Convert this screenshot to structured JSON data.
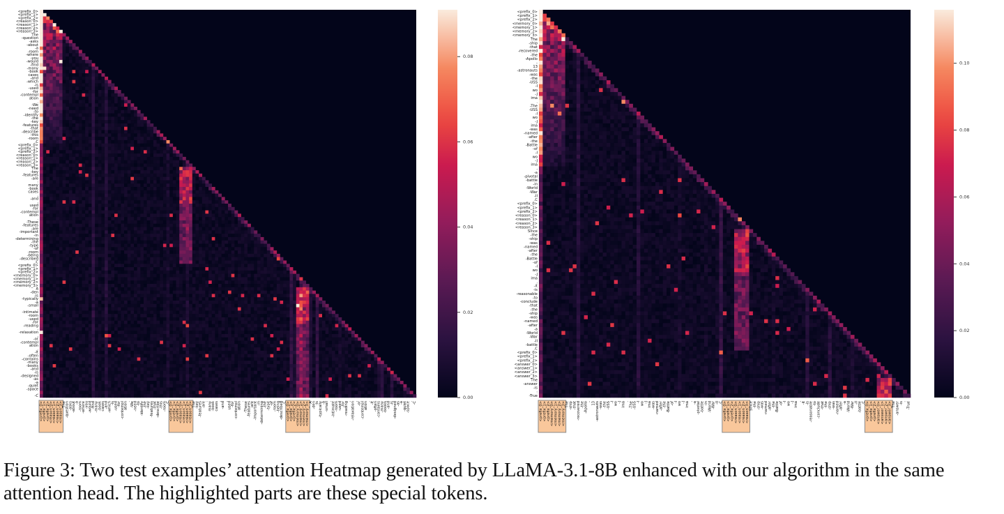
{
  "caption": "Figure 3: Two test examples’ attention Heatmap generated by LLaMA-3.1-8B enhanced with our algorithm in the same attention head. The highlighted parts are these special tokens.",
  "colors": {
    "highlight_fill": "#f9c79b",
    "highlight_border": "#8a8a8a",
    "colormap": "rocket"
  },
  "chart_data": [
    {
      "type": "heatmap",
      "title": "",
      "mask": "upper-triangle",
      "colorbar": {
        "vmin": 0.0,
        "vmax": 0.091,
        "ticks": [
          "0.00",
          "0.02",
          "0.04",
          "0.06",
          "0.08"
        ],
        "tick_values": [
          0,
          0.02,
          0.04,
          0.06,
          0.08
        ]
      },
      "tokens": [
        "<prefix_0>",
        "<prefix_1>",
        "<prefix_2>",
        "<reason_0>",
        "<reason_1>",
        "<reason_2>",
        "<reason_3>",
        "The",
        "-question",
        "-asks",
        "-about",
        "-a",
        "-room",
        "-where",
        "-you",
        "-would",
        "-find",
        "-many",
        "-book",
        "cases",
        "-and",
        "-which",
        "-is",
        "-used",
        "-for",
        "-contempl",
        "ation",
        ".",
        "-We",
        "-need",
        "-to",
        "-identify",
        "-the",
        "-key",
        "-features",
        "-that",
        "-describe",
        "-this",
        "-room",
        ".C",
        "<prefix_0>",
        "<prefix_1>",
        "<prefix_2>",
        "<reason_0>",
        "<reason_1>",
        "<reason_2>",
        "<reason_3>",
        "The",
        "-key",
        "-features",
        "-are",
        ":",
        "many",
        "-book",
        "cases",
        ",",
        "-and",
        ",",
        "used",
        "-for",
        "-contempl",
        "ation",
        ".",
        "-These",
        "-features",
        "-are",
        "-important",
        "-in",
        "-determining",
        "-the",
        "-type",
        "-of",
        "-room",
        "-being",
        "-described",
        ".C",
        "<prefix_0>",
        "<prefix_1>",
        "<prefix_2>",
        "<memory_0>",
        "<memory_1>",
        "<memory_2>",
        "<memory_3>",
        "A",
        "-den",
        "-is",
        "-typically",
        "-a",
        "-small",
        ",",
        "-intimate",
        "-room",
        "-used",
        "-for",
        "-reading",
        ",",
        "-relaxation",
        ",",
        "-or",
        "-contempl",
        "ation",
        ".",
        "-It",
        "-often",
        "-contains",
        "-many",
        "-books",
        "-and",
        "-is",
        "-designed",
        "-as",
        "-a",
        "-quiet",
        "-space",
        ".",
        "-C"
      ]
    },
    {
      "type": "heatmap",
      "title": "",
      "mask": "upper-triangle",
      "colorbar": {
        "vmin": 0.0,
        "vmax": 0.116,
        "ticks": [
          "0.00",
          "0.02",
          "0.04",
          "0.06",
          "0.08",
          "0.10"
        ],
        "tick_values": [
          0,
          0.02,
          0.04,
          0.06,
          0.08,
          0.1
        ]
      },
      "tokens": [
        "<prefix_0>",
        "<prefix_1>",
        "<prefix_2>",
        "<memory_0>",
        "<memory_1>",
        "<memory_2>",
        "<memory_3>",
        "The",
        "-ship",
        "-that",
        "-recovered",
        "-the",
        "-Apollo",
        "-",
        "13",
        "-astronauts",
        "-was",
        "-the",
        "-USS",
        "-I",
        "wo",
        "-J",
        "ima",
        ".",
        "-The",
        "-USS",
        "-I",
        "wo",
        "-J",
        "ima",
        "-was",
        "-named",
        "-after",
        "-the",
        "-Battle",
        "-of",
        "-I",
        "wo",
        "-J",
        "ima",
        ",",
        "-a",
        "-pivotal",
        "-battle",
        "-in",
        "-World",
        "-War",
        "-II",
        ".C",
        "<prefix_0>",
        "<prefix_1>",
        "<prefix_2>",
        "<reason_0>",
        "<reason_1>",
        "<reason_2>",
        "<reason_3>",
        "Since",
        "-the",
        "-ship",
        "-was",
        "-named",
        "-after",
        "-the",
        "-Battle",
        "-of",
        "-I",
        "wo",
        "-J",
        "ima",
        ",",
        "-it",
        "-is",
        "-reasonable",
        "-to",
        "-conclude",
        "-that",
        "-the",
        "-ship",
        "-was",
        "-named",
        "-after",
        "-a",
        "-World",
        "-War",
        "-II",
        "-battle",
        ".C",
        "<prefix_0>",
        "<prefix_1>",
        "<prefix_2>",
        "<answer_0>",
        "<answer_1>",
        "<answer_2>",
        "<answer_3>",
        "The",
        "-answer",
        "-is",
        ":",
        "-True"
      ]
    }
  ]
}
